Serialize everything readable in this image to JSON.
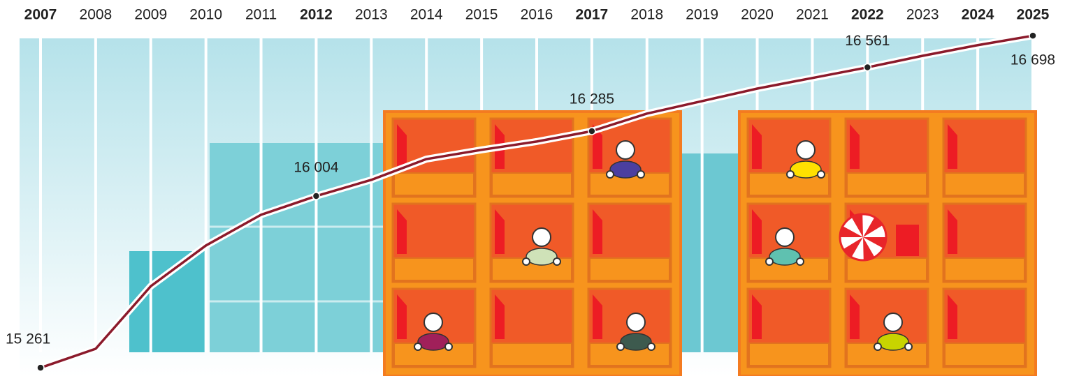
{
  "chart_data": {
    "type": "line",
    "categories": [
      "2007",
      "2008",
      "2009",
      "2010",
      "2011",
      "2012",
      "2013",
      "2014",
      "2015",
      "2016",
      "2017",
      "2018",
      "2019",
      "2020",
      "2021",
      "2022",
      "2023",
      "2024",
      "2025"
    ],
    "bold": [
      true,
      false,
      false,
      false,
      false,
      true,
      false,
      false,
      false,
      false,
      true,
      false,
      false,
      false,
      false,
      true,
      false,
      true,
      true
    ],
    "series": [
      {
        "color": "#8b1a2b",
        "values": [
          15261,
          15343,
          15614,
          15790,
          15923,
          16004,
          16074,
          16164,
          16204,
          16240,
          16285,
          16361,
          16415,
          16469,
          16515,
          16561,
          16611,
          16657,
          16698
        ],
        "value_labels": [
          "15 261",
          null,
          null,
          null,
          null,
          "16 004",
          null,
          null,
          null,
          null,
          "16 285",
          null,
          null,
          null,
          null,
          "16 561",
          null,
          null,
          "16 698"
        ]
      }
    ],
    "ylim": [
      15180,
      16780
    ]
  }
}
